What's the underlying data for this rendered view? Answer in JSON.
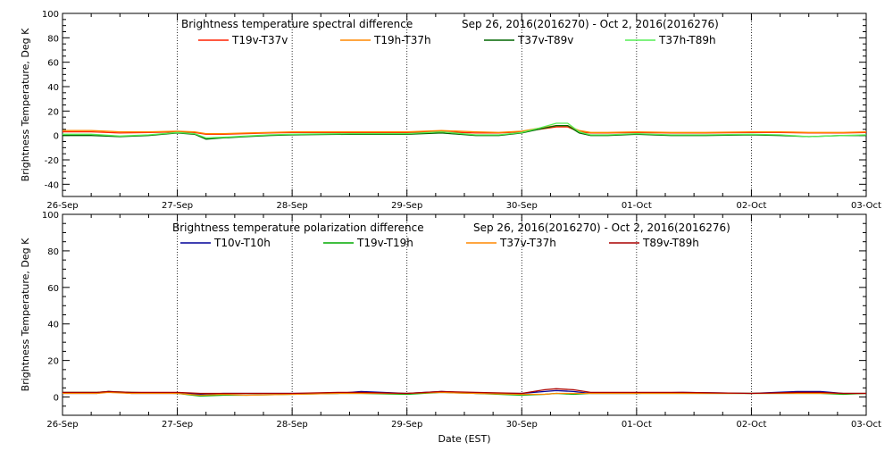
{
  "chart_data": [
    {
      "type": "line",
      "title": "Brightness temperature spectral difference",
      "date_range": "Sep 26, 2016(2016270) - Oct  2, 2016(2016276)",
      "ylabel": "Brightness Temperature, Deg K",
      "xlabel": "",
      "ylim": [
        -50,
        100
      ],
      "yticks": [
        -40,
        -20,
        0,
        20,
        40,
        60,
        80,
        100
      ],
      "ytick_labels": [
        "-40",
        "-20",
        "0",
        "20",
        "40",
        "60",
        "80",
        "100"
      ],
      "xlim": [
        0,
        7
      ],
      "xticks": [
        0,
        1,
        2,
        3,
        4,
        5,
        6,
        7
      ],
      "xtick_labels": [
        "26-Sep",
        "27-Sep",
        "28-Sep",
        "29-Sep",
        "30-Sep",
        "01-Oct",
        "02-Oct",
        "03-Oct"
      ],
      "grid": "vertical dotted lines at each day",
      "legend_position": "top",
      "x_unit": "days since 26-Sep",
      "series": [
        {
          "name": "T19v-T37v",
          "color": "#ff2200",
          "x": [
            0,
            0.25,
            0.5,
            0.75,
            1,
            1.15,
            1.25,
            1.4,
            1.6,
            1.8,
            2,
            2.5,
            3,
            3.3,
            3.6,
            3.8,
            4,
            4.15,
            4.3,
            4.4,
            4.5,
            4.6,
            4.75,
            5,
            5.3,
            5.6,
            6,
            6.25,
            6.5,
            6.8,
            7
          ],
          "y": [
            3,
            3,
            2,
            2.5,
            3,
            2.5,
            1,
            1,
            1.5,
            2,
            2.5,
            2.5,
            2.5,
            3,
            2,
            2,
            3,
            5,
            7,
            7,
            3,
            2,
            2,
            2.5,
            2,
            2,
            2.5,
            2.5,
            2,
            2,
            2.5
          ]
        },
        {
          "name": "T19h-T37h",
          "color": "#ff8800",
          "x": [
            0,
            0.25,
            0.5,
            0.75,
            1,
            1.15,
            1.25,
            1.4,
            1.6,
            1.8,
            2,
            2.5,
            3,
            3.3,
            3.6,
            3.8,
            4,
            4.15,
            4.3,
            4.4,
            4.5,
            4.6,
            4.75,
            5,
            5.3,
            5.6,
            6,
            6.25,
            6.5,
            6.8,
            7
          ],
          "y": [
            4,
            4,
            3,
            3,
            3.5,
            3,
            1.5,
            1.5,
            2,
            2.5,
            3,
            3,
            3,
            4,
            3,
            2.5,
            3.5,
            6,
            8,
            8,
            4,
            2.5,
            2.5,
            3,
            2.5,
            2.5,
            3,
            3,
            2.5,
            2.5,
            3
          ]
        },
        {
          "name": "T37v-T89v",
          "color": "#006600",
          "x": [
            0,
            0.25,
            0.5,
            0.75,
            1,
            1.15,
            1.25,
            1.4,
            1.6,
            1.8,
            2,
            2.5,
            3,
            3.3,
            3.6,
            3.8,
            4,
            4.15,
            4.3,
            4.4,
            4.5,
            4.6,
            4.75,
            5,
            5.3,
            5.6,
            6,
            6.25,
            6.5,
            6.8,
            7
          ],
          "y": [
            0,
            0,
            -1,
            0,
            2,
            1,
            -3,
            -2,
            -1,
            0,
            0.5,
            1,
            1,
            2,
            0,
            0,
            2,
            5,
            8,
            8,
            2,
            0,
            0,
            1,
            0,
            0,
            0.5,
            0,
            -1,
            0,
            0
          ]
        },
        {
          "name": "T37h-T89h",
          "color": "#55ee55",
          "x": [
            0,
            0.25,
            0.5,
            0.75,
            1,
            1.15,
            1.25,
            1.4,
            1.6,
            1.8,
            2,
            2.5,
            3,
            3.3,
            3.6,
            3.8,
            4,
            4.15,
            4.3,
            4.4,
            4.5,
            4.6,
            4.75,
            5,
            5.3,
            5.6,
            6,
            6.25,
            6.5,
            6.8,
            7
          ],
          "y": [
            1,
            1,
            -0.5,
            0.5,
            2.5,
            1.5,
            -2,
            -1.5,
            -0.5,
            0.5,
            1,
            1.5,
            1.5,
            3,
            0.5,
            0.5,
            2.5,
            6,
            10,
            10,
            3,
            0.5,
            0.5,
            1.5,
            0.5,
            0.5,
            1,
            0.5,
            -1,
            0,
            0.5
          ]
        }
      ]
    },
    {
      "type": "line",
      "title": "Brightness temperature polarization difference",
      "date_range": "Sep 26, 2016(2016270) - Oct  2, 2016(2016276)",
      "ylabel": "Brightness Temperature, Deg K",
      "xlabel": "Date (EST)",
      "ylim": [
        -10,
        100
      ],
      "yticks": [
        0,
        20,
        40,
        60,
        80,
        100
      ],
      "ytick_labels": [
        "0",
        "20",
        "40",
        "60",
        "80",
        "100"
      ],
      "xlim": [
        0,
        7
      ],
      "xticks": [
        0,
        1,
        2,
        3,
        4,
        5,
        6,
        7
      ],
      "xtick_labels": [
        "26-Sep",
        "27-Sep",
        "28-Sep",
        "29-Sep",
        "30-Sep",
        "01-Oct",
        "02-Oct",
        "03-Oct"
      ],
      "grid": "vertical dotted lines at each day",
      "legend_position": "top",
      "x_unit": "days since 26-Sep",
      "series": [
        {
          "name": "T10v-T10h",
          "color": "#000099",
          "x": [
            0,
            0.3,
            0.4,
            0.6,
            1,
            1.2,
            1.4,
            1.6,
            2,
            2.4,
            2.6,
            3,
            3.3,
            3.6,
            4,
            4.2,
            4.3,
            4.45,
            4.6,
            5,
            5.4,
            6,
            6.4,
            6.6,
            6.8,
            7
          ],
          "y": [
            2,
            2,
            3,
            2,
            2,
            1.5,
            2,
            2,
            2,
            2,
            3,
            2,
            3,
            2,
            2,
            3,
            3.5,
            3,
            2,
            2,
            2.5,
            2,
            3,
            3,
            2,
            2
          ]
        },
        {
          "name": "T19v-T19h",
          "color": "#00aa00",
          "x": [
            0,
            0.3,
            0.4,
            0.6,
            1,
            1.2,
            1.4,
            1.6,
            2,
            2.4,
            2.6,
            3,
            3.3,
            3.6,
            4,
            4.2,
            4.3,
            4.45,
            4.6,
            5,
            5.4,
            6,
            6.4,
            6.6,
            6.8,
            7
          ],
          "y": [
            2.5,
            2.5,
            3,
            2.5,
            2,
            0.5,
            1,
            1,
            1.5,
            2,
            2,
            1.5,
            2.5,
            2,
            1,
            1.5,
            2,
            1.5,
            2,
            2,
            2,
            2,
            2,
            2,
            1.5,
            2
          ]
        },
        {
          "name": "T37v-T37h",
          "color": "#ff8800",
          "x": [
            0,
            0.3,
            0.4,
            0.6,
            1,
            1.2,
            1.4,
            1.6,
            2,
            2.4,
            2.6,
            3,
            3.3,
            3.6,
            4,
            4.2,
            4.3,
            4.45,
            4.6,
            5,
            5.4,
            6,
            6.4,
            6.6,
            6.8,
            7
          ],
          "y": [
            2,
            2,
            2.5,
            2,
            2,
            1,
            1.5,
            1,
            1.5,
            2,
            2,
            2,
            2.5,
            2,
            1.5,
            1.5,
            2,
            2,
            2,
            2,
            2,
            2,
            2,
            2,
            2,
            2
          ]
        },
        {
          "name": "T89v-T89h",
          "color": "#aa0000",
          "x": [
            0,
            0.3,
            0.4,
            0.6,
            1,
            1.2,
            1.4,
            1.6,
            2,
            2.4,
            2.6,
            3,
            3.3,
            3.6,
            4,
            4.2,
            4.3,
            4.45,
            4.6,
            5,
            5.4,
            6,
            6.4,
            6.6,
            6.8,
            7
          ],
          "y": [
            2.5,
            2.5,
            3,
            2.5,
            2.5,
            2,
            2,
            2,
            2,
            2.5,
            2.5,
            2,
            3,
            2.5,
            2,
            4,
            4.5,
            4,
            2.5,
            2.5,
            2.5,
            2,
            2.5,
            2.5,
            2,
            2
          ]
        }
      ]
    }
  ]
}
